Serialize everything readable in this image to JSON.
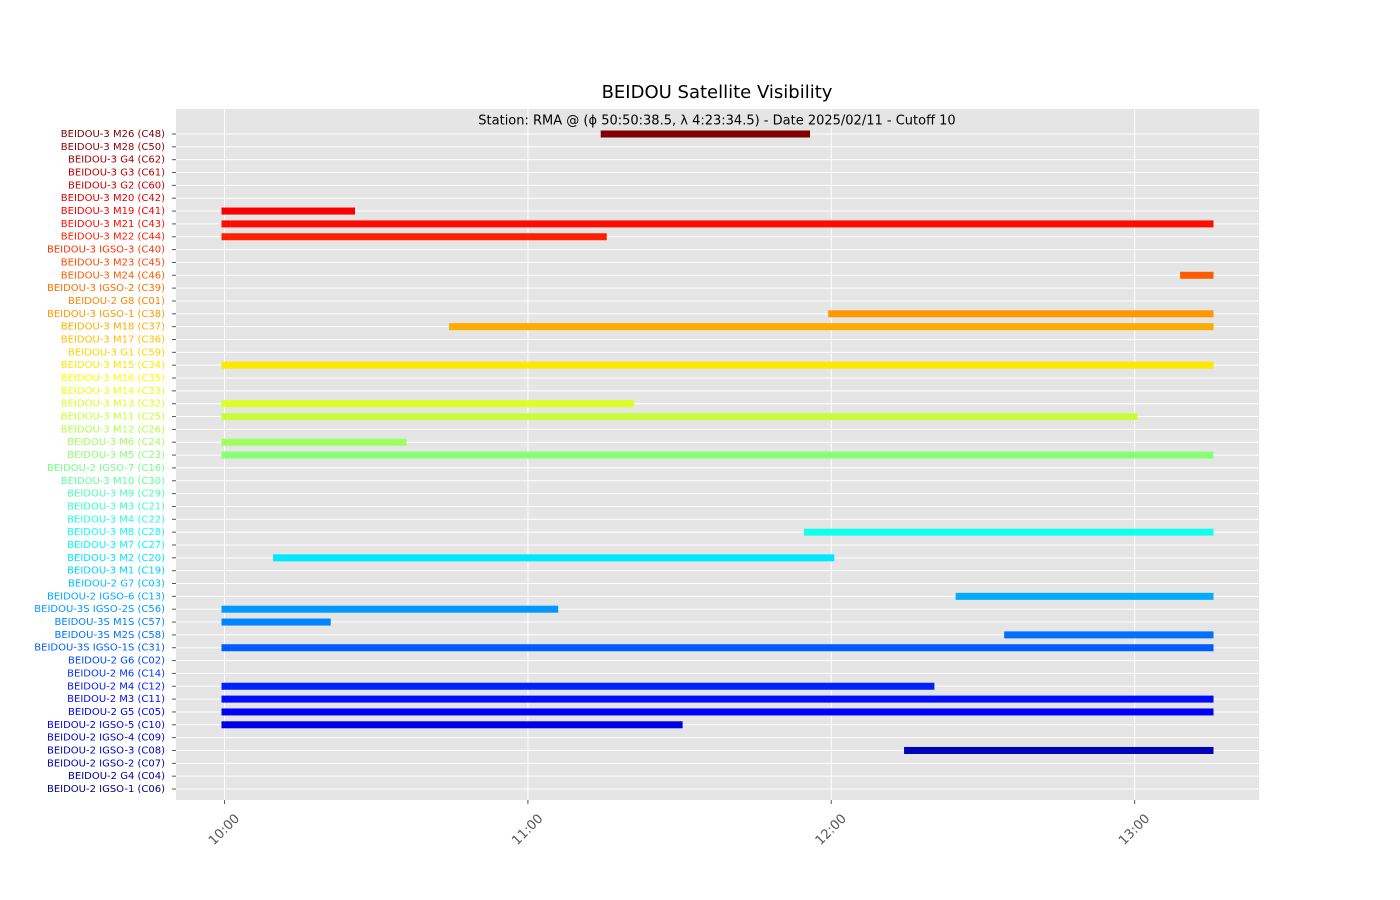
{
  "chart_data": {
    "type": "gantt",
    "title": "BEIDOU Satellite Visibility",
    "subtitle": "Station: RMA @ (ϕ 50:50:38.5, λ 4:23:34.5) - Date 2025/02/11 - Cutoff 10",
    "categories": [
      "BEIDOU-3 M26 (C48)",
      "BEIDOU-3 M28 (C50)",
      "BEIDOU-3 G4 (C62)",
      "BEIDOU-3 G3 (C61)",
      "BEIDOU-3 G2 (C60)",
      "BEIDOU-3 M20 (C42)",
      "BEIDOU-3 M19 (C41)",
      "BEIDOU-3 M21 (C43)",
      "BEIDOU-3 M22 (C44)",
      "BEIDOU-3 IGSO-3 (C40)",
      "BEIDOU-3 M23 (C45)",
      "BEIDOU-3 M24 (C46)",
      "BEIDOU-3 IGSO-2 (C39)",
      "BEIDOU-2 G8 (C01)",
      "BEIDOU-3 IGSO-1 (C38)",
      "BEIDOU-3 M18 (C37)",
      "BEIDOU-3 M17 (C36)",
      "BEIDOU-3 G1 (C59)",
      "BEIDOU-3 M15 (C34)",
      "BEIDOU-3 M16 (C35)",
      "BEIDOU-3 M14 (C33)",
      "BEIDOU-3 M13 (C32)",
      "BEIDOU-3 M11 (C25)",
      "BEIDOU-3 M12 (C26)",
      "BEIDOU-3 M6 (C24)",
      "BEIDOU-3 M5 (C23)",
      "BEIDOU-2 IGSO-7 (C16)",
      "BEIDOU-3 M10 (C30)",
      "BEIDOU-3 M9 (C29)",
      "BEIDOU-3 M3 (C21)",
      "BEIDOU-3 M4 (C22)",
      "BEIDOU-3 M8 (C28)",
      "BEIDOU-3 M7 (C27)",
      "BEIDOU-3 M2 (C20)",
      "BEIDOU-3 M1 (C19)",
      "BEIDOU-2 G7 (C03)",
      "BEIDOU-2 IGSO-6 (C13)",
      "BEIDOU-3S IGSO-2S (C56)",
      "BEIDOU-3S M1S (C57)",
      "BEIDOU-3S M2S (C58)",
      "BEIDOU-3S IGSO-1S (C31)",
      "BEIDOU-2 G6 (C02)",
      "BEIDOU-2 M6 (C14)",
      "BEIDOU-2 M4 (C12)",
      "BEIDOU-2 M3 (C11)",
      "BEIDOU-2 G5 (C05)",
      "BEIDOU-2 IGSO-5 (C10)",
      "BEIDOU-2 IGSO-4 (C09)",
      "BEIDOU-2 IGSO-3 (C08)",
      "BEIDOU-2 IGSO-2 (C07)",
      "BEIDOU-2 G4 (C04)",
      "BEIDOU-2 IGSO-1 (C06)"
    ],
    "start": [
      11.24,
      null,
      null,
      null,
      null,
      null,
      9.99,
      9.99,
      9.99,
      null,
      null,
      13.15,
      null,
      null,
      11.99,
      10.74,
      null,
      null,
      9.99,
      null,
      null,
      9.99,
      9.99,
      null,
      9.99,
      9.99,
      null,
      null,
      null,
      null,
      null,
      11.91,
      null,
      10.16,
      null,
      null,
      12.41,
      9.99,
      9.99,
      12.57,
      9.99,
      null,
      null,
      9.99,
      9.99,
      9.99,
      9.99,
      null,
      12.24,
      null,
      null,
      null
    ],
    "end": [
      11.93,
      null,
      null,
      null,
      null,
      null,
      10.43,
      13.26,
      11.26,
      null,
      null,
      13.26,
      null,
      null,
      13.26,
      13.26,
      null,
      null,
      13.26,
      null,
      null,
      11.35,
      13.01,
      null,
      10.6,
      13.26,
      null,
      null,
      null,
      null,
      null,
      13.26,
      null,
      12.01,
      null,
      null,
      13.26,
      11.1,
      10.35,
      13.26,
      13.26,
      null,
      null,
      12.34,
      13.26,
      13.26,
      11.51,
      null,
      13.26,
      null,
      null,
      null
    ],
    "colors": [
      "#800000",
      "#930000",
      "#a80000",
      "#bb0000",
      "#cf0000",
      "#e30000",
      "#f80000",
      "#ff0c00",
      "#ff2000",
      "#ff3400",
      "#ff4800",
      "#ff5c00",
      "#ff7000",
      "#ff8500",
      "#ff9800",
      "#ffac00",
      "#ffc000",
      "#ffd400",
      "#ffe800",
      "#fffc00",
      "#edff12",
      "#d9ff25",
      "#c6ff39",
      "#b2ff4d",
      "#9eff61",
      "#89ff76",
      "#76ff89",
      "#61ff9e",
      "#4dffb2",
      "#39ffc6",
      "#25ffd9",
      "#12ffed",
      "#00fcff",
      "#00e8ff",
      "#00d4ff",
      "#00c0ff",
      "#00acff",
      "#0098ff",
      "#0085ff",
      "#0070ff",
      "#005cff",
      "#0048ff",
      "#0034ff",
      "#0020ff",
      "#000cff",
      "#0000f8",
      "#0000e3",
      "#0000cf",
      "#0000bb",
      "#0000a8",
      "#000093",
      "#000080"
    ],
    "xlim": [
      9.84,
      13.41
    ],
    "xticks": [
      {
        "value": 10,
        "label": "10:00"
      },
      {
        "value": 11,
        "label": "11:00"
      },
      {
        "value": 12,
        "label": "12:00"
      },
      {
        "value": 13,
        "label": "13:00"
      }
    ],
    "grid": true
  }
}
